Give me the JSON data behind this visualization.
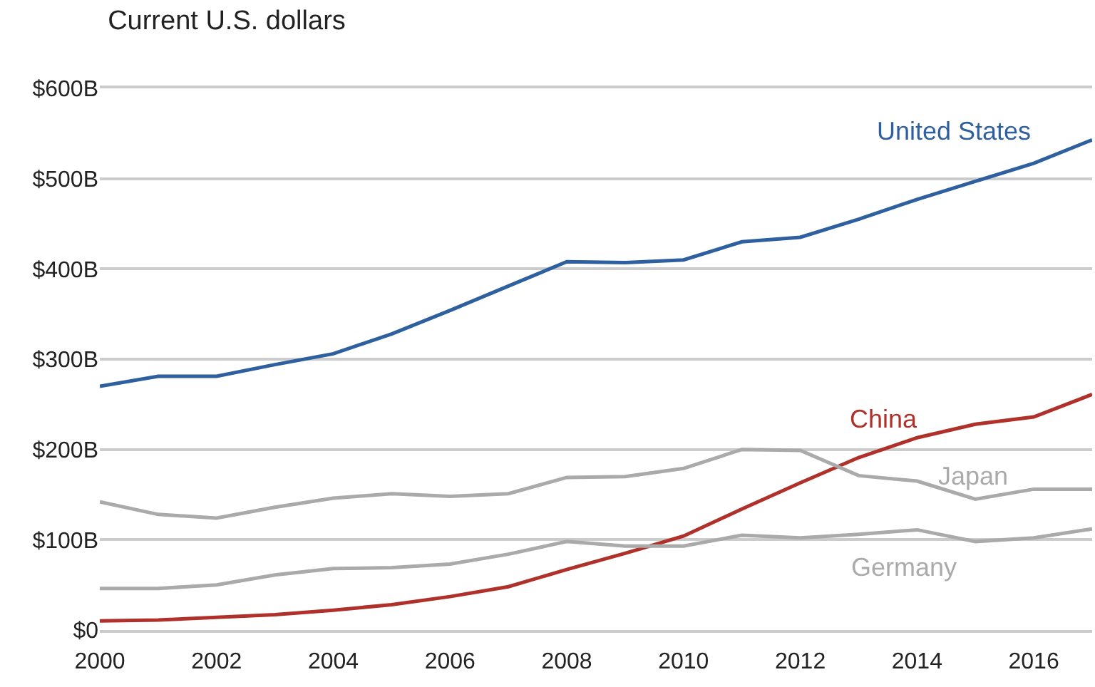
{
  "chart_data": {
    "type": "line",
    "title": "Current U.S. dollars",
    "x": [
      2000,
      2001,
      2002,
      2003,
      2004,
      2005,
      2006,
      2007,
      2008,
      2009,
      2010,
      2011,
      2012,
      2013,
      2014,
      2015,
      2016,
      2017
    ],
    "series": [
      {
        "name": "United States",
        "color": "#2e5f9e",
        "values": [
          270,
          281,
          281,
          294,
          306,
          328,
          354,
          381,
          408,
          407,
          410,
          430,
          435,
          455,
          477,
          497,
          517,
          543
        ]
      },
      {
        "name": "China",
        "color": "#b0302a",
        "values": [
          10,
          11,
          14,
          17,
          22,
          28,
          37,
          48,
          67,
          85,
          104,
          134,
          163,
          191,
          213,
          228,
          236,
          261
        ]
      },
      {
        "name": "Japan",
        "color": "#aaaaaa",
        "values": [
          142,
          128,
          124,
          136,
          146,
          151,
          148,
          151,
          169,
          170,
          179,
          200,
          199,
          171,
          165,
          145,
          156,
          156
        ]
      },
      {
        "name": "Germany",
        "color": "#aaaaaa",
        "values": [
          46,
          46,
          50,
          61,
          68,
          69,
          73,
          84,
          98,
          93,
          93,
          105,
          102,
          106,
          111,
          98,
          102,
          112
        ]
      }
    ],
    "xlim": [
      2000,
      2017
    ],
    "xticks": [
      2000,
      2002,
      2004,
      2006,
      2008,
      2010,
      2012,
      2014,
      2016
    ],
    "ylim": [
      0,
      600
    ],
    "yticks": [
      {
        "value": 0,
        "label": "$0"
      },
      {
        "value": 100,
        "label": "$100B"
      },
      {
        "value": 200,
        "label": "$200B"
      },
      {
        "value": 300,
        "label": "$300B"
      },
      {
        "value": 400,
        "label": "$400B"
      },
      {
        "value": 500,
        "label": "$500B"
      },
      {
        "value": 600,
        "label": "$600B"
      }
    ],
    "grid": "y",
    "legend": false,
    "marker": "none",
    "line_style": "solid"
  }
}
